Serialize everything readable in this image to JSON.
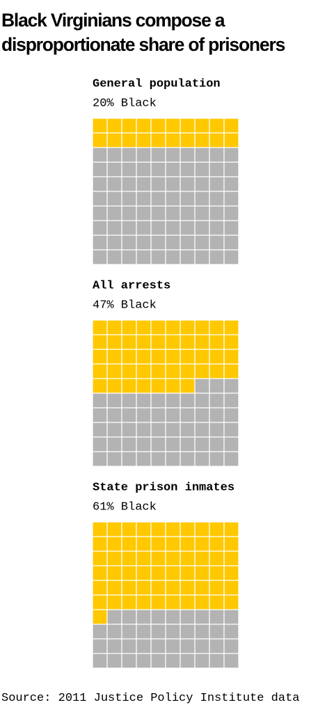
{
  "title": "Black Virginians compose a disproportionate share of prisoners",
  "source": "Source: 2011 Justice Policy Institute data",
  "chart_data": [
    {
      "type": "waffle",
      "title": "General population",
      "value": 20,
      "value_label": "20% Black",
      "color": "#ffc800",
      "empty_color": "#b3b3b3"
    },
    {
      "type": "waffle",
      "title": "All arrests",
      "value": 47,
      "value_label": "47% Black",
      "color": "#ffc800",
      "empty_color": "#b3b3b3"
    },
    {
      "type": "waffle",
      "title": "State prison inmates",
      "value": 61,
      "value_label": "61% Black",
      "color": "#ffc800",
      "empty_color": "#b3b3b3"
    }
  ]
}
